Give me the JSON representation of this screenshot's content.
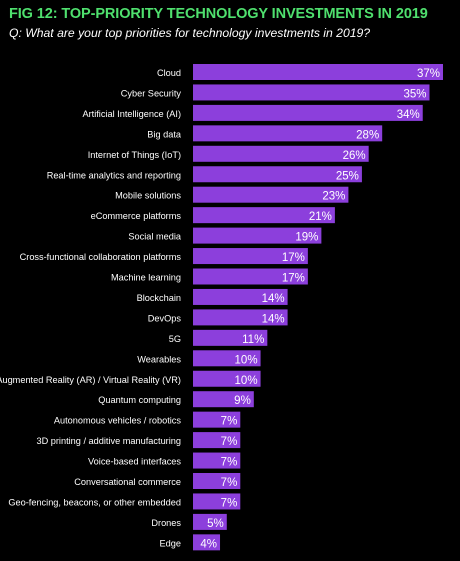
{
  "header": {
    "title": "FIG 12: TOP-PRIORITY TECHNOLOGY INVESTMENTS IN 2019",
    "subtitle": "Q: What are your top priorities for technology investments in 2019?"
  },
  "colors": {
    "background": "#000000",
    "bar": "#8c3fdc",
    "title": "#4fe06e",
    "label_text": "#ffffff"
  },
  "chart_data": {
    "type": "bar",
    "orientation": "horizontal",
    "title": "FIG 12: TOP-PRIORITY TECHNOLOGY INVESTMENTS IN 2019",
    "subtitle": "Q: What are your top priorities for technology investments in 2019?",
    "categories": [
      "Cloud",
      "Cyber Security",
      "Artificial Intelligence (AI)",
      "Big data",
      "Internet of Things (IoT)",
      "Real-time analytics and reporting",
      "Mobile solutions",
      "eCommerce platforms",
      "Social media",
      "Cross-functional collaboration platforms",
      "Machine learning",
      "Blockchain",
      "DevOps",
      "5G",
      "Wearables",
      "Augmented Reality (AR) / Virtual Reality (VR)",
      "Quantum computing",
      "Autonomous vehicles / robotics",
      "3D printing / additive manufacturing",
      "Voice-based interfaces",
      "Conversational commerce",
      "Geo-fencing, beacons, or other embedded",
      "Drones",
      "Edge"
    ],
    "values": [
      37,
      35,
      34,
      28,
      26,
      25,
      23,
      21,
      19,
      17,
      17,
      14,
      14,
      11,
      10,
      10,
      9,
      7,
      7,
      7,
      7,
      7,
      5,
      4
    ],
    "value_labels": [
      "37%",
      "35%",
      "34%",
      "28%",
      "26%",
      "25%",
      "23%",
      "21%",
      "19%",
      "17%",
      "17%",
      "14%",
      "14%",
      "11%",
      "10%",
      "10%",
      "9%",
      "7%",
      "7%",
      "7%",
      "7%",
      "7%",
      "5%",
      "4%"
    ],
    "unit": "%",
    "xlim": [
      0,
      37
    ],
    "grid": false,
    "legend": "none"
  }
}
